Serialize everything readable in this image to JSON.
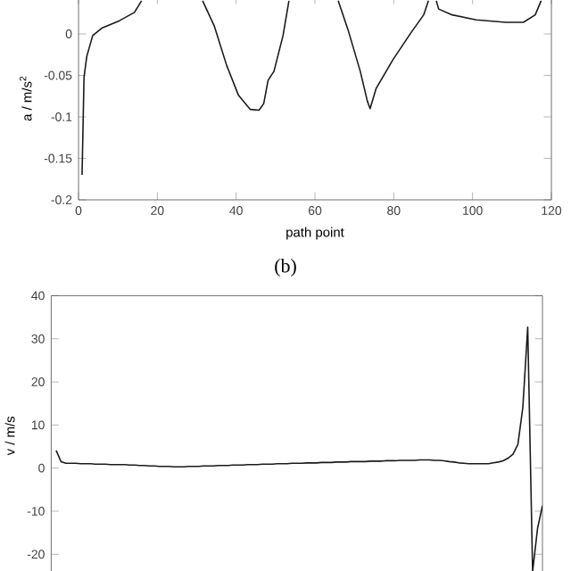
{
  "chart_data": [
    {
      "type": "line",
      "xlabel": "path point",
      "ylabel": "a / m/s$^{2}$",
      "annotations": [
        "(b)"
      ],
      "xlim": [
        0,
        120
      ],
      "ylim": [
        -0.2,
        0.045
      ],
      "xticks": [
        0,
        20,
        40,
        60,
        80,
        100,
        120
      ],
      "yticks": [
        {
          "value": -0.2,
          "label": "-0.2"
        },
        {
          "value": -0.15,
          "label": "-0.15"
        },
        {
          "value": -0.1,
          "label": "-0.1"
        },
        {
          "value": -0.05,
          "label": "-0.05"
        },
        0
      ],
      "series": [
        {
          "color": "#1a1a1a",
          "x": [
            0.9,
            1.4,
            2.1,
            3.6,
            5.9,
            10.4,
            14.2,
            16,
            24,
            31.5,
            34.5,
            37.6,
            40.6,
            43.6,
            45.8,
            47,
            48.1,
            49.6,
            51.9,
            53.4,
            60,
            65.9,
            68.4,
            71.5,
            73.3,
            74,
            75.5,
            79.8,
            84.3,
            87.6,
            88.8,
            90,
            90.8,
            91.4,
            94.8,
            100.9,
            108.4,
            112.9,
            115.9,
            117.4
          ],
          "values": [
            -0.17,
            -0.052,
            -0.027,
            -0.002,
            0.007,
            0.016,
            0.026,
            0.04,
            null,
            0.04,
            0.009,
            -0.038,
            -0.074,
            -0.091,
            -0.092,
            -0.084,
            -0.056,
            -0.045,
            -0.002,
            0.04,
            null,
            0.04,
            0.005,
            -0.045,
            -0.081,
            -0.09,
            -0.066,
            -0.031,
            0.001,
            0.023,
            0.04,
            null,
            0.04,
            0.03,
            0.023,
            0.017,
            0.014,
            0.014,
            0.023,
            0.04
          ]
        }
      ]
    },
    {
      "type": "line",
      "ylabel": "v / m/s",
      "ylim": [
        -25,
        40
      ],
      "yticks": [
        -20,
        -10,
        0,
        10,
        20,
        30,
        40
      ],
      "categories": [
        null,
        null,
        null,
        null,
        null,
        null,
        null,
        null,
        null,
        null,
        null,
        null,
        null,
        null,
        null,
        null,
        null,
        null,
        null,
        null,
        null,
        null,
        null,
        null,
        null,
        null,
        null,
        null,
        null,
        null,
        null,
        null,
        null,
        null,
        null,
        null,
        null,
        null,
        null,
        null,
        null,
        null,
        null,
        null,
        null,
        null,
        null,
        null,
        null,
        null,
        null,
        null,
        null,
        null,
        null,
        null,
        null,
        null,
        null,
        null,
        null,
        null,
        null,
        null,
        null,
        null,
        null,
        null,
        null,
        null,
        null,
        null,
        null,
        null,
        null,
        null,
        null,
        null,
        null,
        null,
        null,
        null,
        null,
        null,
        null,
        null,
        null,
        null,
        null,
        null,
        null,
        null,
        null,
        null,
        null,
        null,
        null,
        null,
        null,
        null,
        null
      ],
      "series": [
        {
          "color": "#1a1a1a",
          "values": [
            null,
            4.1,
            1.5,
            1.1,
            1.1,
            1.1,
            1.0,
            1.0,
            1.0,
            0.9,
            0.9,
            0.9,
            0.8,
            0.8,
            0.8,
            0.8,
            0.7,
            0.7,
            0.6,
            0.6,
            0.5,
            0.5,
            0.4,
            0.4,
            0.4,
            0.3,
            0.3,
            0.3,
            0.4,
            0.4,
            0.4,
            0.5,
            0.5,
            0.5,
            0.6,
            0.6,
            0.6,
            0.7,
            0.7,
            0.7,
            0.8,
            0.8,
            0.8,
            0.9,
            0.9,
            0.9,
            1.0,
            1.0,
            1.0,
            1.1,
            1.1,
            1.1,
            1.2,
            1.2,
            1.2,
            1.3,
            1.3,
            1.3,
            1.4,
            1.4,
            1.4,
            1.5,
            1.5,
            1.5,
            1.5,
            1.6,
            1.6,
            1.6,
            1.7,
            1.7,
            1.7,
            1.8,
            1.8,
            1.8,
            1.8,
            1.9,
            1.9,
            1.9,
            1.8,
            1.8,
            1.7,
            1.5,
            1.4,
            1.2,
            1.1,
            1.0,
            1.0,
            1.0,
            1.0,
            1.0,
            1.2,
            1.4,
            1.7,
            2.3,
            3.2,
            5.5,
            14,
            32.7,
            -24,
            -14,
            -8.7
          ]
        }
      ]
    }
  ]
}
